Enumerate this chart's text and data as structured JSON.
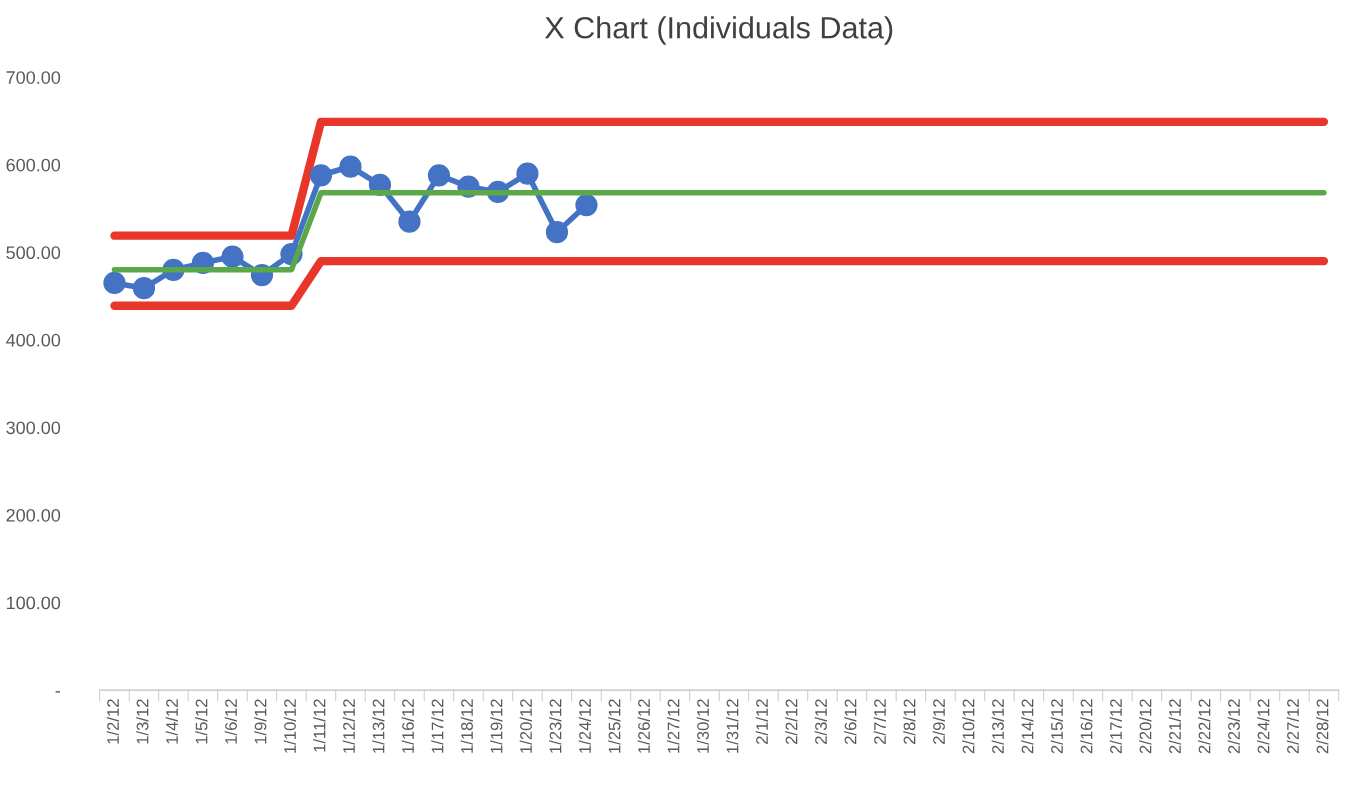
{
  "chart_data": {
    "type": "line",
    "title": "X Chart (Individuals Data)",
    "categories": [
      "1/2/12",
      "1/3/12",
      "1/4/12",
      "1/5/12",
      "1/6/12",
      "1/9/12",
      "1/10/12",
      "1/11/12",
      "1/12/12",
      "1/13/12",
      "1/16/12",
      "1/17/12",
      "1/18/12",
      "1/19/12",
      "1/20/12",
      "1/23/12",
      "1/24/12",
      "1/25/12",
      "1/26/12",
      "1/27/12",
      "1/30/12",
      "1/31/12",
      "2/1/12",
      "2/2/12",
      "2/3/12",
      "2/6/12",
      "2/7/12",
      "2/8/12",
      "2/9/12",
      "2/10/12",
      "2/13/12",
      "2/14/12",
      "2/15/12",
      "2/16/12",
      "2/17/12",
      "2/20/12",
      "2/21/12",
      "2/22/12",
      "2/23/12",
      "2/24/12",
      "2/27/12",
      "2/28/12"
    ],
    "series": [
      {
        "color": "#e8372a",
        "values": [
          519,
          519,
          519,
          519,
          519,
          519,
          519,
          649,
          649,
          649,
          649,
          649,
          649,
          649,
          649,
          649,
          649,
          649,
          649,
          649,
          649,
          649,
          649,
          649,
          649,
          649,
          649,
          649,
          649,
          649,
          649,
          649,
          649,
          649,
          649,
          649,
          649,
          649,
          649,
          649,
          649,
          649
        ],
        "marker": "none"
      },
      {
        "color": "#e8372a",
        "values": [
          439,
          439,
          439,
          439,
          439,
          439,
          439,
          490,
          490,
          490,
          490,
          490,
          490,
          490,
          490,
          490,
          490,
          490,
          490,
          490,
          490,
          490,
          490,
          490,
          490,
          490,
          490,
          490,
          490,
          490,
          490,
          490,
          490,
          490,
          490,
          490,
          490,
          490,
          490,
          490,
          490,
          490
        ],
        "marker": "none"
      },
      {
        "color": "#5aa84a",
        "values": [
          480,
          480,
          480,
          480,
          480,
          480,
          480,
          568,
          568,
          568,
          568,
          568,
          568,
          568,
          568,
          568,
          568,
          568,
          568,
          568,
          568,
          568,
          568,
          568,
          568,
          568,
          568,
          568,
          568,
          568,
          568,
          568,
          568,
          568,
          568,
          568,
          568,
          568,
          568,
          568,
          568,
          568
        ],
        "marker": "none"
      },
      {
        "color": "#4472c4",
        "values": [
          465,
          459,
          480,
          488,
          495,
          474,
          498,
          588,
          598,
          577,
          535,
          588,
          575,
          569,
          590,
          523,
          554,
          null,
          null,
          null,
          null,
          null,
          null,
          null,
          null,
          null,
          null,
          null,
          null,
          null,
          null,
          null,
          null,
          null,
          null,
          null,
          null,
          null,
          null,
          null,
          null,
          null
        ],
        "marker": "circle"
      }
    ],
    "ylim": [
      0,
      700
    ],
    "yticks": [
      {
        "value": 0,
        "label": "-"
      },
      {
        "value": 100,
        "label": "100.00"
      },
      {
        "value": 200,
        "label": "200.00"
      },
      {
        "value": 300,
        "label": "300.00"
      },
      {
        "value": 400,
        "label": "400.00"
      },
      {
        "value": 500,
        "label": "500.00"
      },
      {
        "value": 600,
        "label": "600.00"
      },
      {
        "value": 700,
        "label": "700.00"
      }
    ],
    "grid": false,
    "legend": false
  }
}
